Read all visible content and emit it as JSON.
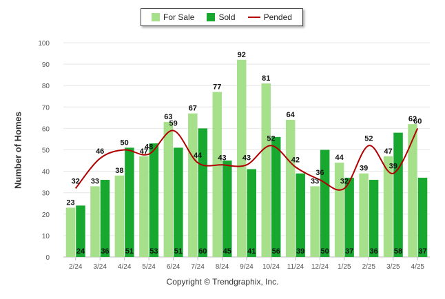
{
  "legend": {
    "for_sale": "For Sale",
    "sold": "Sold",
    "pended": "Pended"
  },
  "copyright": "Copyright © Trendgraphix, Inc.",
  "colors": {
    "for_sale": "#a6e08a",
    "sold": "#18a82f",
    "pended": "#b00000",
    "grid": "#e6e6e6"
  },
  "chart_data": {
    "type": "bar",
    "ylabel": "Number of Homes",
    "ylim": [
      0,
      100
    ],
    "yticks": [
      0,
      10,
      20,
      30,
      40,
      50,
      60,
      70,
      80,
      90,
      100
    ],
    "grid": true,
    "legend_position": "top-center",
    "categories": [
      "2/24",
      "3/24",
      "4/24",
      "5/24",
      "6/24",
      "7/24",
      "8/24",
      "9/24",
      "10/24",
      "11/24",
      "12/24",
      "1/25",
      "2/25",
      "3/25",
      "4/25"
    ],
    "series": [
      {
        "name": "For Sale",
        "type": "bar",
        "values": [
          23,
          33,
          38,
          47,
          63,
          67,
          77,
          92,
          81,
          64,
          33,
          44,
          39,
          47,
          62
        ]
      },
      {
        "name": "Sold",
        "type": "bar",
        "values": [
          24,
          36,
          51,
          53,
          51,
          60,
          45,
          41,
          56,
          39,
          50,
          37,
          36,
          58,
          37
        ]
      },
      {
        "name": "Pended",
        "type": "line",
        "values": [
          32,
          46,
          50,
          48,
          59,
          44,
          43,
          43,
          52,
          42,
          36,
          32,
          52,
          39,
          60
        ]
      }
    ]
  }
}
